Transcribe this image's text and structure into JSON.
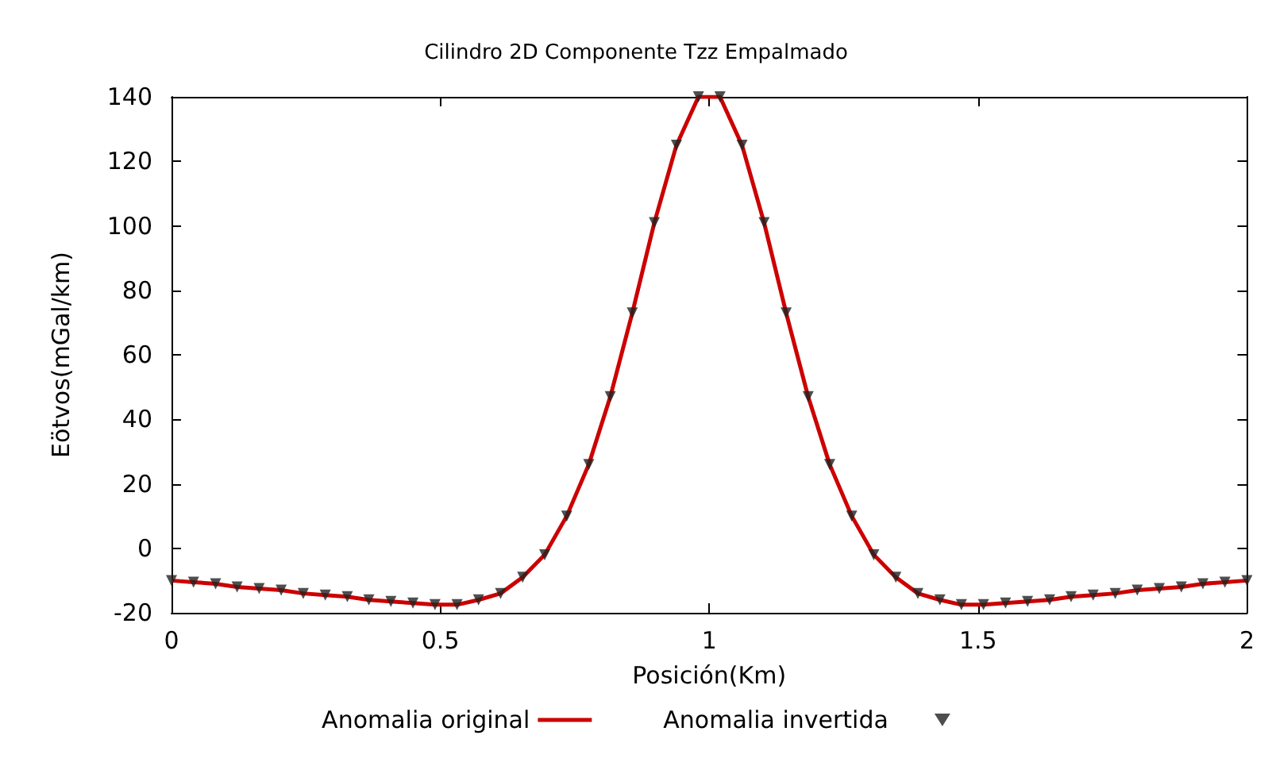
{
  "chart_data": {
    "type": "line",
    "title": "Cilindro 2D Componente Tzz Empalmado",
    "xlabel": "Posición(Km)",
    "ylabel": "Eötvos(mGal/km)",
    "x": [
      0,
      0.041,
      0.082,
      0.122,
      0.163,
      0.204,
      0.245,
      0.286,
      0.327,
      0.367,
      0.408,
      0.449,
      0.49,
      0.531,
      0.571,
      0.612,
      0.653,
      0.694,
      0.735,
      0.776,
      0.816,
      0.857,
      0.898,
      0.939,
      0.98,
      1.02,
      1.061,
      1.102,
      1.143,
      1.184,
      1.224,
      1.265,
      1.306,
      1.347,
      1.388,
      1.429,
      1.469,
      1.51,
      1.551,
      1.592,
      1.633,
      1.673,
      1.714,
      1.755,
      1.796,
      1.837,
      1.878,
      1.918,
      1.959,
      2
    ],
    "series": [
      {
        "name": "Anomalia original",
        "color": "#cc0000",
        "marker": "none",
        "line_style": "solid",
        "values": [
          -10,
          -10.5,
          -11,
          -12,
          -12.5,
          -13,
          -14,
          -14.5,
          -15,
          -16,
          -16.5,
          -17,
          -17.5,
          -17.5,
          -16,
          -14,
          -9,
          -2,
          10,
          26,
          47,
          73,
          101,
          125,
          140,
          140,
          125,
          101,
          73,
          47,
          26,
          10,
          -2,
          -9,
          -14,
          -16,
          -17.5,
          -17.5,
          -17,
          -16.5,
          -16,
          -15,
          -14.5,
          -14,
          -13,
          -12.5,
          -12,
          -11,
          -10.5,
          -10
        ]
      },
      {
        "name": "Anomalia invertida",
        "type": "scatter",
        "color": "#222222",
        "marker": "triangle",
        "values": [
          -10,
          -10.5,
          -11,
          -12,
          -12.5,
          -13,
          -14,
          -14.5,
          -15,
          -16,
          -16.5,
          -17,
          -17.5,
          -17.5,
          -16,
          -14,
          -9,
          -2,
          10,
          26,
          47,
          73,
          101,
          125,
          140,
          140,
          125,
          101,
          73,
          47,
          26,
          10,
          -2,
          -9,
          -14,
          -16,
          -17.5,
          -17.5,
          -17,
          -16.5,
          -16,
          -15,
          -14.5,
          -14,
          -13,
          -12.5,
          -12,
          -11,
          -10.5,
          -10
        ]
      }
    ],
    "xlim": [
      0,
      2
    ],
    "xticks": [
      0,
      0.5,
      1,
      1.5,
      2
    ],
    "ylim": [
      -20,
      140
    ],
    "yticks": [
      -20,
      0,
      20,
      40,
      60,
      80,
      100,
      120,
      140
    ],
    "grid": false,
    "legend": "bottom"
  }
}
